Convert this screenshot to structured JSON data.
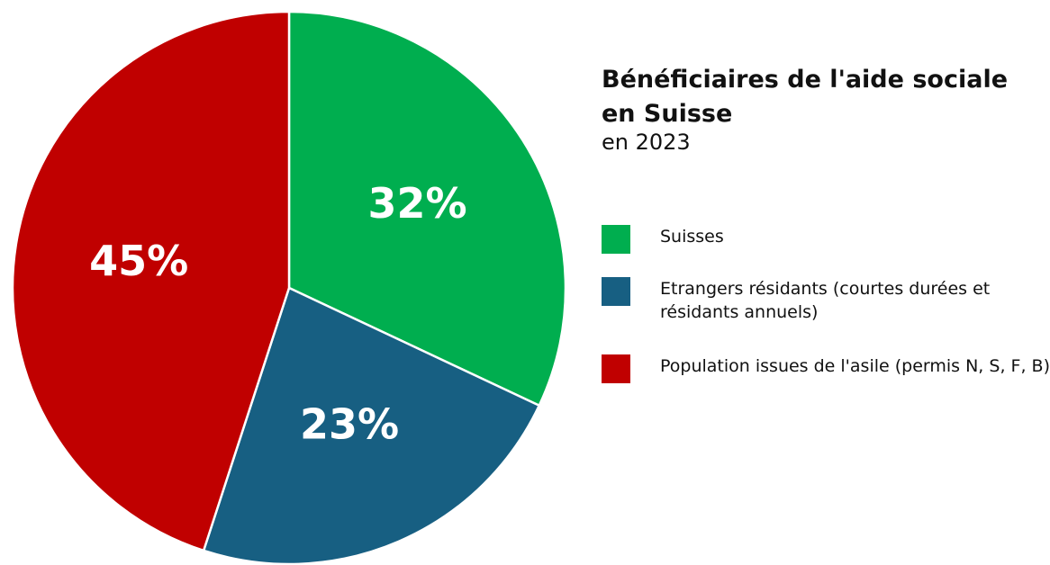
{
  "chart_data": {
    "type": "pie",
    "title": "Bénéficiaires de l'aide sociale en Suisse",
    "subtitle": "en 2023",
    "categories": [
      "Suisses",
      "Etrangers résidants (courtes durées et résidants annuels)",
      "Population issues de l'asile (permis N, S, F, B)"
    ],
    "values": [
      32,
      23,
      45
    ],
    "value_labels": [
      "32%",
      "23%",
      "45%"
    ],
    "colors": [
      "#00ae4f",
      "#175f82",
      "#c00000"
    ]
  }
}
